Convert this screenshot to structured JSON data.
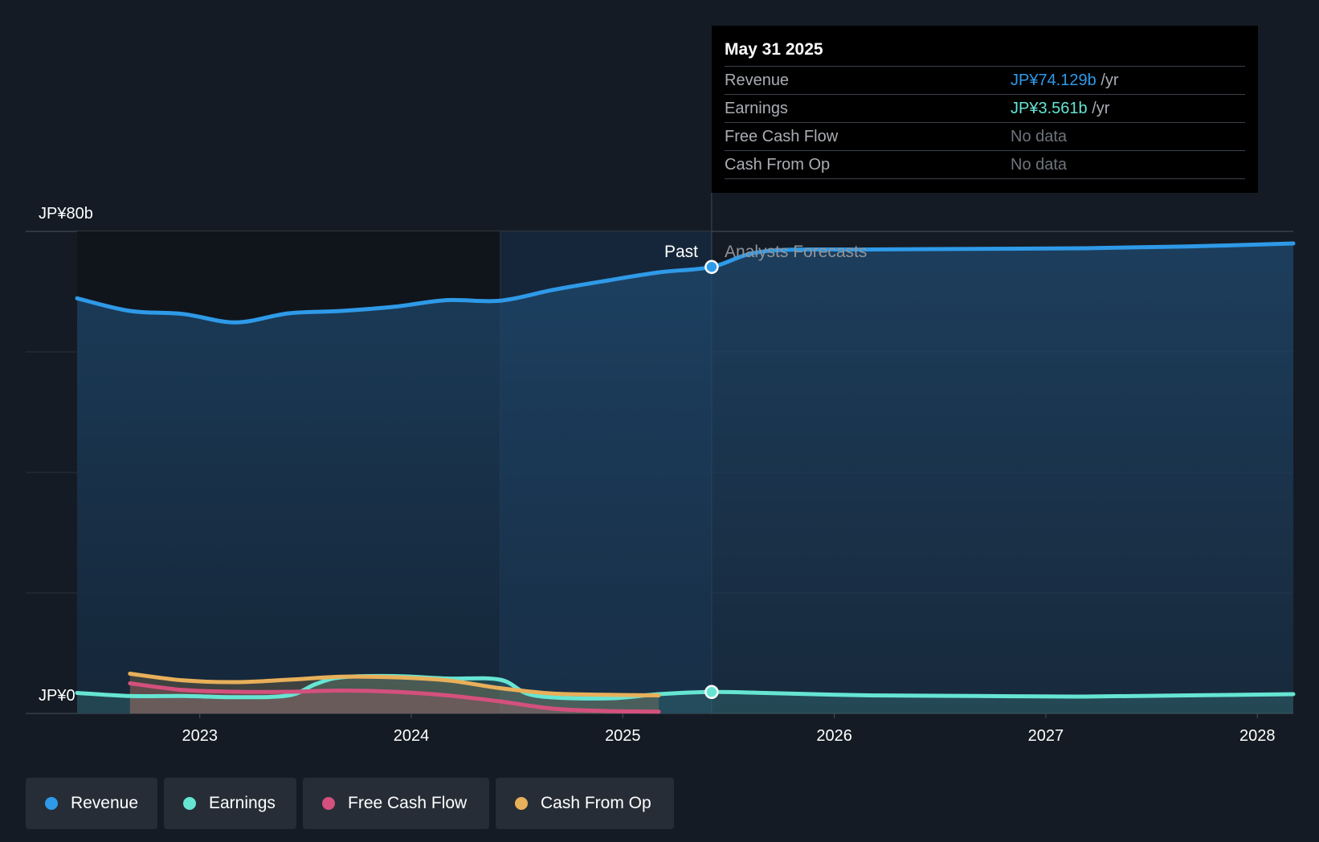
{
  "tooltip": {
    "date": "May 31 2025",
    "rows": [
      {
        "label": "Revenue",
        "value": "JP¥74.129b",
        "unit": "/yr",
        "color": "#2e9ae8"
      },
      {
        "label": "Earnings",
        "value": "JP¥3.561b",
        "unit": "/yr",
        "color": "#66e5d3"
      },
      {
        "label": "Free Cash Flow",
        "value": "No data",
        "unit": "",
        "color": "#6e747c"
      },
      {
        "label": "Cash From Op",
        "value": "No data",
        "unit": "",
        "color": "#6e747c"
      }
    ]
  },
  "labels": {
    "past": "Past",
    "forecast": "Analysts Forecasts"
  },
  "legend": [
    {
      "label": "Revenue",
      "color": "#2e9ae8"
    },
    {
      "label": "Earnings",
      "color": "#66e5d3"
    },
    {
      "label": "Free Cash Flow",
      "color": "#d4507d"
    },
    {
      "label": "Cash From Op",
      "color": "#e8b05a"
    }
  ],
  "chart_data": {
    "type": "line",
    "y_tick_labels": [
      "JP¥80b",
      "JP¥0"
    ],
    "ylim": [
      0,
      80
    ],
    "x_tick_labels": [
      "2023",
      "2024",
      "2025",
      "2026",
      "2027",
      "2028"
    ],
    "xlim": [
      2022.42,
      2028.17
    ],
    "grid": true,
    "legend_position": "bottom-left",
    "past_forecast_divider": 2025.42,
    "highlight_band_start": 2024.42,
    "series": [
      {
        "name": "Revenue",
        "color": "#2e9ae8",
        "area": true,
        "points": [
          [
            2022.42,
            68.9
          ],
          [
            2022.67,
            66.8
          ],
          [
            2022.92,
            66.3
          ],
          [
            2023.17,
            64.9
          ],
          [
            2023.42,
            66.4
          ],
          [
            2023.67,
            66.8
          ],
          [
            2023.92,
            67.5
          ],
          [
            2024.17,
            68.6
          ],
          [
            2024.42,
            68.5
          ],
          [
            2024.67,
            70.3
          ],
          [
            2024.92,
            71.8
          ],
          [
            2025.17,
            73.2
          ],
          [
            2025.42,
            74.1
          ],
          [
            2025.67,
            76.7
          ],
          [
            2026.17,
            77.0
          ],
          [
            2026.67,
            77.1
          ],
          [
            2027.17,
            77.2
          ],
          [
            2027.67,
            77.5
          ],
          [
            2028.17,
            78.0
          ]
        ]
      },
      {
        "name": "Earnings",
        "color": "#66e5d3",
        "area": true,
        "points": [
          [
            2022.42,
            3.4
          ],
          [
            2022.67,
            2.9
          ],
          [
            2022.92,
            2.9
          ],
          [
            2023.17,
            2.7
          ],
          [
            2023.42,
            3.0
          ],
          [
            2023.55,
            4.9
          ],
          [
            2023.67,
            6.0
          ],
          [
            2023.92,
            6.2
          ],
          [
            2024.17,
            5.8
          ],
          [
            2024.42,
            5.6
          ],
          [
            2024.58,
            3.0
          ],
          [
            2024.92,
            2.5
          ],
          [
            2025.17,
            3.2
          ],
          [
            2025.42,
            3.56
          ],
          [
            2025.67,
            3.4
          ],
          [
            2026.17,
            3.0
          ],
          [
            2026.67,
            2.9
          ],
          [
            2027.17,
            2.8
          ],
          [
            2027.67,
            3.0
          ],
          [
            2028.17,
            3.2
          ]
        ]
      },
      {
        "name": "Free Cash Flow",
        "color": "#d4507d",
        "area": true,
        "points": [
          [
            2022.67,
            5.0
          ],
          [
            2022.92,
            3.9
          ],
          [
            2023.17,
            3.6
          ],
          [
            2023.42,
            3.6
          ],
          [
            2023.67,
            3.8
          ],
          [
            2023.92,
            3.6
          ],
          [
            2024.17,
            3.0
          ],
          [
            2024.42,
            2.0
          ],
          [
            2024.67,
            0.8
          ],
          [
            2024.92,
            0.4
          ],
          [
            2025.17,
            0.3
          ]
        ]
      },
      {
        "name": "Cash From Op",
        "color": "#e8b05a",
        "area": true,
        "points": [
          [
            2022.67,
            6.6
          ],
          [
            2022.92,
            5.5
          ],
          [
            2023.17,
            5.2
          ],
          [
            2023.42,
            5.6
          ],
          [
            2023.67,
            6.1
          ],
          [
            2023.92,
            6.0
          ],
          [
            2024.17,
            5.5
          ],
          [
            2024.42,
            4.2
          ],
          [
            2024.67,
            3.3
          ],
          [
            2024.92,
            3.1
          ],
          [
            2025.17,
            3.0
          ]
        ]
      }
    ],
    "highlight_points": [
      {
        "series": "Revenue",
        "x": 2025.42,
        "y": 74.1
      },
      {
        "series": "Earnings",
        "x": 2025.42,
        "y": 3.56
      }
    ]
  }
}
